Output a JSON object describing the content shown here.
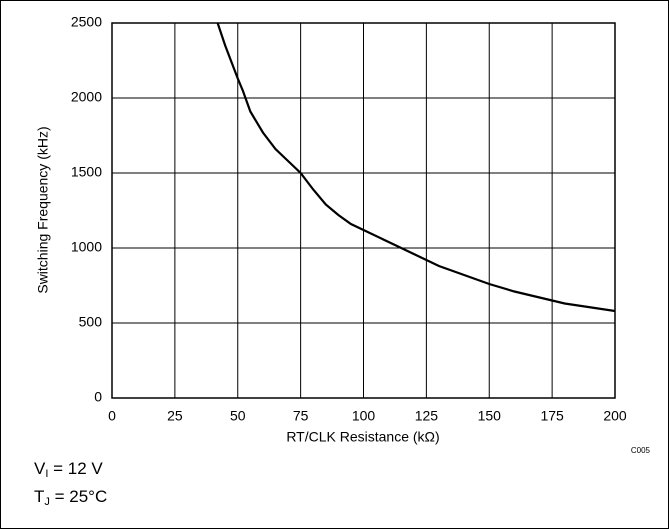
{
  "chart_data": {
    "type": "line",
    "xlabel": "RT/CLK Resistance (kΩ)",
    "ylabel": "Switching Frequency (kHz)",
    "code": "C005",
    "annotations": [
      {
        "main": "V",
        "sub": "I",
        "rest": " = 12 V"
      },
      {
        "main": "T",
        "sub": "J",
        "rest": " = 25°C"
      }
    ],
    "x": [
      42,
      45,
      50,
      52,
      55,
      60,
      65,
      70,
      75,
      80,
      85,
      90,
      95,
      100,
      110,
      120,
      130,
      140,
      150,
      160,
      170,
      180,
      190,
      200
    ],
    "series": [
      {
        "color": "#000000",
        "values": [
          2500,
          2350,
          2130,
          2050,
          1910,
          1770,
          1660,
          1580,
          1500,
          1390,
          1290,
          1220,
          1160,
          1120,
          1040,
          960,
          880,
          820,
          760,
          710,
          670,
          630,
          605,
          580
        ]
      }
    ],
    "xlim": [
      0,
      200
    ],
    "xticks": [
      0,
      25,
      50,
      75,
      100,
      125,
      150,
      175,
      200
    ],
    "ylim": [
      0,
      2500
    ],
    "yticks": [
      0,
      500,
      1000,
      1500,
      2000,
      2500
    ],
    "grid": true
  }
}
